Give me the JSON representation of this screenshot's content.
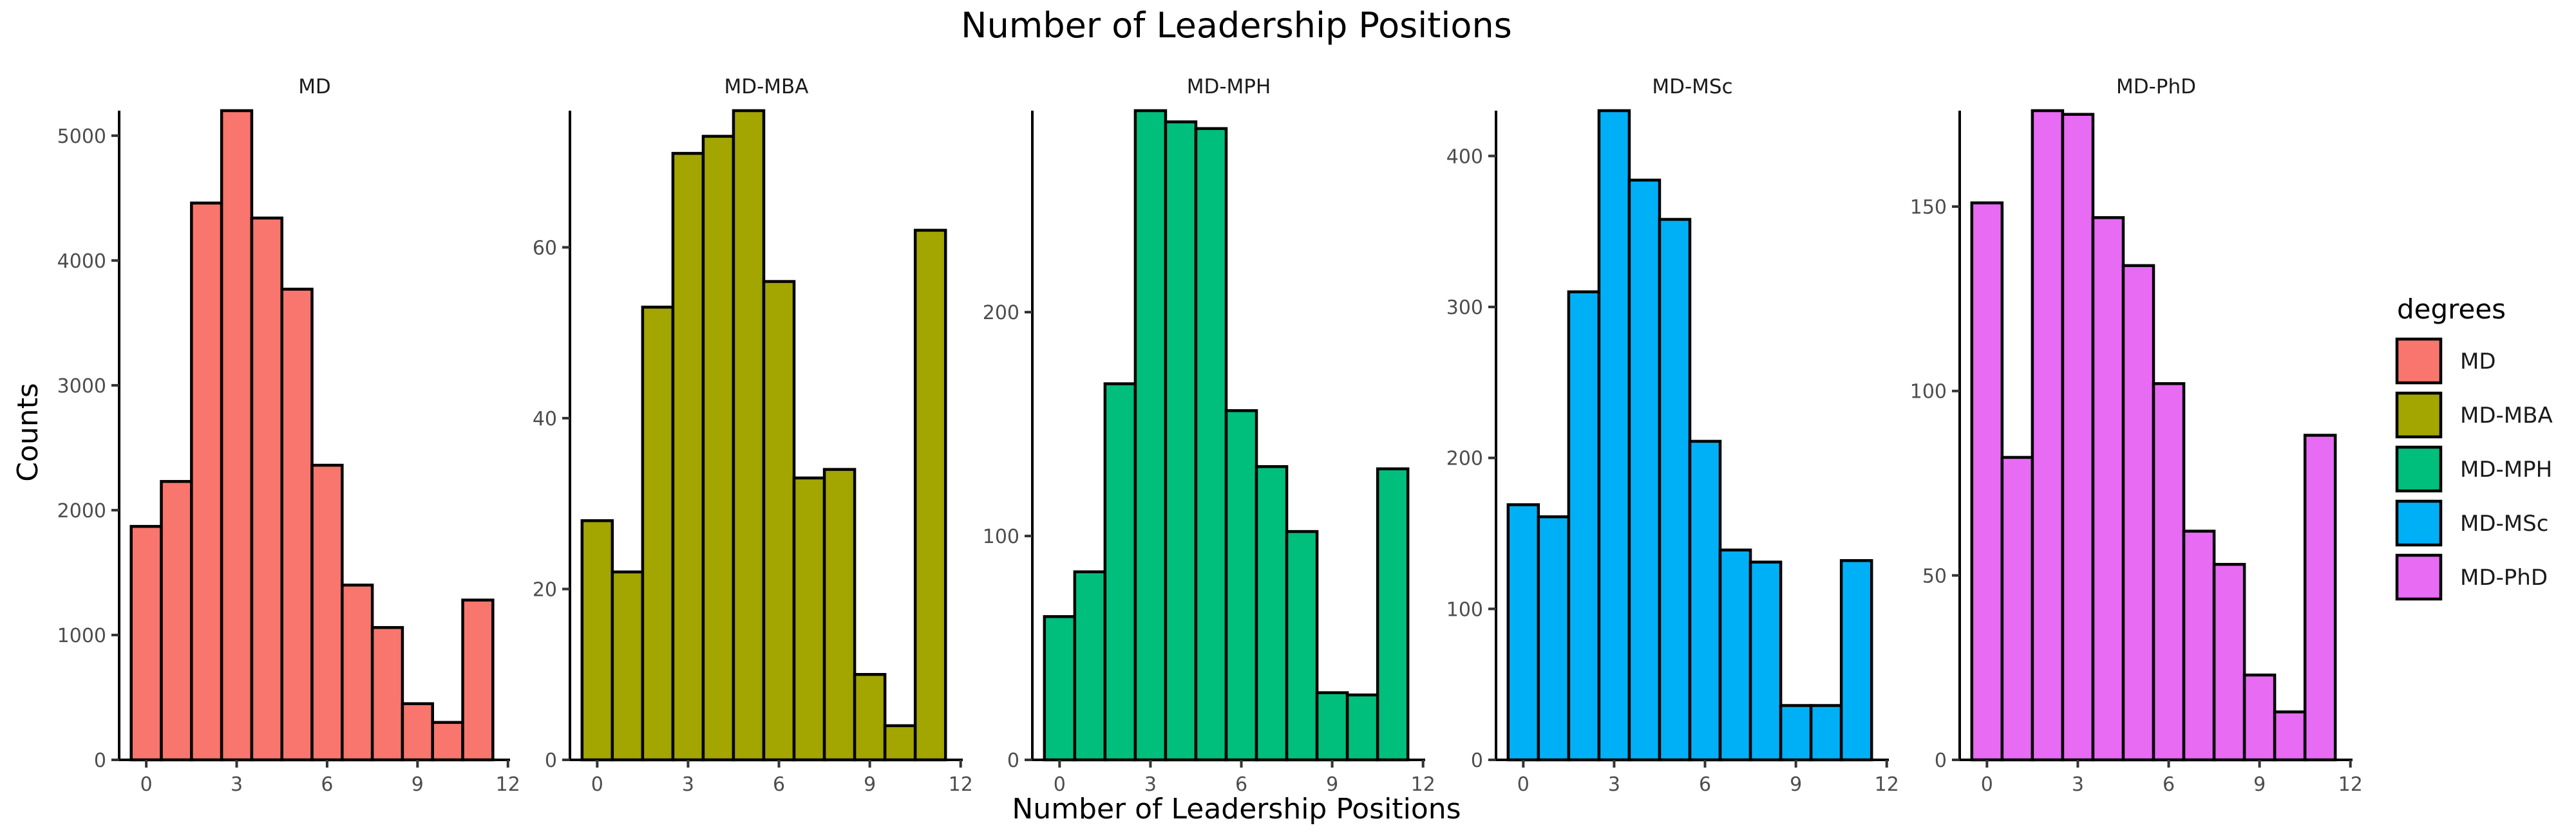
{
  "chart_data": {
    "type": "bar",
    "title": "Number of Leadership Positions",
    "xlabel": "Number of Leadership Positions",
    "ylabel": "Counts",
    "x_categories": [
      0,
      1,
      2,
      3,
      4,
      5,
      6,
      7,
      8,
      9,
      10,
      11
    ],
    "x_ticks": [
      0,
      3,
      6,
      9,
      12
    ],
    "x_tick_labels": [
      "0",
      "3",
      "6",
      "9",
      "12"
    ],
    "grid": false,
    "legend": {
      "title": "degrees",
      "position": "right",
      "entries": [
        {
          "label": "MD",
          "color": "#F8766D"
        },
        {
          "label": "MD-MBA",
          "color": "#A3A500"
        },
        {
          "label": "MD-MPH",
          "color": "#00BF7D"
        },
        {
          "label": "MD-MSc",
          "color": "#00B0F6"
        },
        {
          "label": "MD-PhD",
          "color": "#E76BF3"
        }
      ]
    },
    "panels": [
      {
        "name": "MD",
        "color": "#F8766D",
        "values": [
          1870,
          2230,
          4460,
          5200,
          4340,
          3770,
          2360,
          1400,
          1060,
          450,
          300,
          1280
        ],
        "ylim": [
          0,
          5200
        ],
        "y_ticks": [
          0,
          1000,
          2000,
          3000,
          4000,
          5000
        ],
        "y_tick_labels": [
          "0",
          "1000",
          "2000",
          "3000",
          "4000",
          "5000"
        ]
      },
      {
        "name": "MD-MBA",
        "color": "#A3A500",
        "values": [
          28,
          22,
          53,
          71,
          73,
          76,
          56,
          33,
          34,
          10,
          4,
          62
        ],
        "ylim": [
          0,
          76
        ],
        "y_ticks": [
          0,
          20,
          40,
          60
        ],
        "y_tick_labels": [
          "0",
          "20",
          "40",
          "60"
        ]
      },
      {
        "name": "MD-MPH",
        "color": "#00BF7D",
        "values": [
          64,
          84,
          168,
          290,
          285,
          282,
          156,
          131,
          102,
          30,
          29,
          130
        ],
        "ylim": [
          0,
          290
        ],
        "y_ticks": [
          0,
          100,
          200
        ],
        "y_tick_labels": [
          "0",
          "100",
          "200"
        ]
      },
      {
        "name": "MD-MSc",
        "color": "#00B0F6",
        "values": [
          169,
          161,
          310,
          430,
          384,
          358,
          211,
          139,
          131,
          36,
          36,
          132
        ],
        "ylim": [
          0,
          430
        ],
        "y_ticks": [
          0,
          100,
          200,
          300,
          400
        ],
        "y_tick_labels": [
          "0",
          "100",
          "200",
          "300",
          "400"
        ]
      },
      {
        "name": "MD-PhD",
        "color": "#E76BF3",
        "values": [
          151,
          82,
          176,
          175,
          147,
          134,
          102,
          62,
          53,
          23,
          13,
          88
        ],
        "ylim": [
          0,
          176
        ],
        "y_ticks": [
          0,
          50,
          100,
          150
        ],
        "y_tick_labels": [
          "0",
          "50",
          "100",
          "150"
        ]
      }
    ]
  }
}
